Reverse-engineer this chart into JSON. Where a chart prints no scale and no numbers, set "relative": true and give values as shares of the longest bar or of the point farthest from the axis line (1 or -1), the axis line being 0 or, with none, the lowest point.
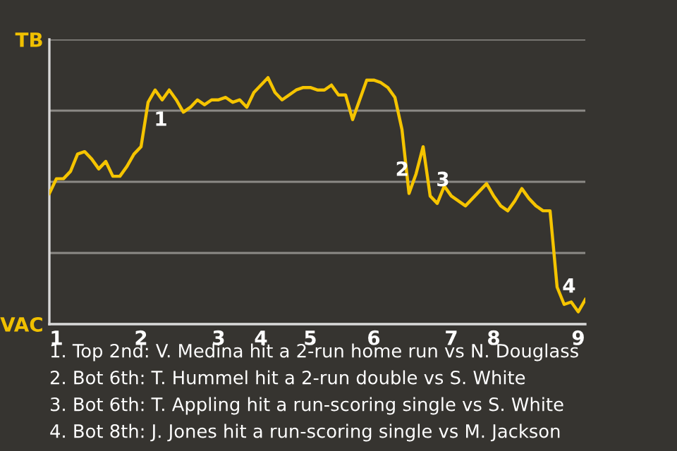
{
  "chart_data": {
    "type": "line",
    "relative": true,
    "categories": [
      null,
      "1",
      null,
      null,
      null,
      null,
      null,
      null,
      null,
      null,
      null,
      null,
      null,
      "2",
      null,
      null,
      null,
      null,
      null,
      null,
      null,
      null,
      null,
      null,
      "3",
      null,
      null,
      null,
      null,
      null,
      "4",
      null,
      null,
      null,
      null,
      null,
      null,
      "5",
      null,
      null,
      null,
      null,
      null,
      null,
      null,
      null,
      "6",
      null,
      null,
      null,
      null,
      null,
      null,
      null,
      null,
      null,
      null,
      "7",
      null,
      null,
      null,
      null,
      null,
      "8",
      null,
      null,
      null,
      null,
      null,
      null,
      null,
      null,
      null,
      null,
      null,
      "9",
      null
    ],
    "series": [
      {
        "color": "#f5c400",
        "values": [
          0.53,
          0.59,
          0.59,
          0.62,
          0.69,
          0.7,
          0.67,
          0.63,
          0.66,
          0.6,
          0.6,
          0.64,
          0.69,
          0.72,
          0.9,
          0.95,
          0.91,
          0.95,
          0.91,
          0.86,
          0.88,
          0.91,
          0.89,
          0.91,
          0.91,
          0.92,
          0.9,
          0.91,
          0.88,
          0.94,
          0.97,
          1,
          0.94,
          0.91,
          0.93,
          0.95,
          0.96,
          0.96,
          0.95,
          0.95,
          0.97,
          0.93,
          0.93,
          0.83,
          0.91,
          0.99,
          0.99,
          0.98,
          0.96,
          0.92,
          0.79,
          0.53,
          0.61,
          0.72,
          0.52,
          0.49,
          0.56,
          0.52,
          0.5,
          0.48,
          0.51,
          0.54,
          0.57,
          0.52,
          0.48,
          0.46,
          0.5,
          0.55,
          0.51,
          0.48,
          0.46,
          0.46,
          0.15,
          0.08,
          0.09,
          0.05,
          0.1
        ]
      }
    ],
    "grid": "y",
    "annotations": [
      "TB",
      "VAC",
      {
        "text": "1",
        "y": 0.9
      },
      {
        "text": "2",
        "y": 0.53
      },
      {
        "text": "3",
        "y": 0.52
      },
      {
        "text": "4",
        "y": 0.08
      },
      "1. Top 2nd: V. Medina hit a 2-run home run vs N. Douglass",
      "2. Bot 6th: T. Hummel hit a 2-run double vs S. White",
      "3. Bot 6th: T. Appling hit a run-scoring single vs S. White",
      "4. Bot 8th: J. Jones hit a run-scoring single vs M. Jackson"
    ],
    "marker": "none",
    "line_style": "solid"
  }
}
